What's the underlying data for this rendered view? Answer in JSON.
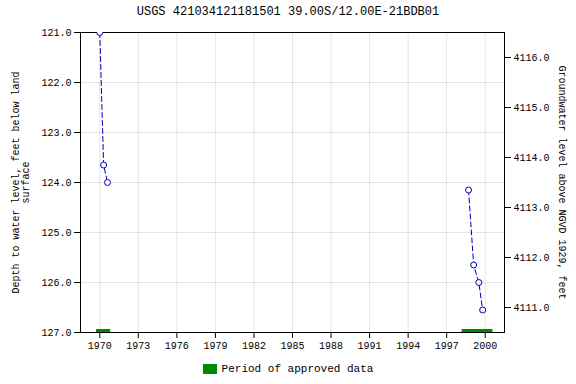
{
  "chart_data": {
    "type": "line",
    "title": "USGS 421034121181501 39.00S/12.00E-21BDB01",
    "xlim": [
      1968.5,
      2001.5
    ],
    "xticks": [
      1970,
      1973,
      1976,
      1979,
      1982,
      1985,
      1988,
      1991,
      1994,
      1997,
      2000
    ],
    "ylim": [
      127.0,
      121.0
    ],
    "yticks": [
      {
        "value": 121.0,
        "label": "121.0"
      },
      {
        "value": 122.0,
        "label": "122.0"
      },
      {
        "value": 123.0,
        "label": "123.0"
      },
      {
        "value": 124.0,
        "label": "124.0"
      },
      {
        "value": 125.0,
        "label": "125.0"
      },
      {
        "value": 126.0,
        "label": "126.0"
      },
      {
        "value": 127.0,
        "label": "127.0"
      }
    ],
    "y2lim": [
      4110.5,
      4116.5
    ],
    "y2ticks": [
      {
        "value": 4111.0,
        "label": "4111.0"
      },
      {
        "value": 4112.0,
        "label": "4112.0"
      },
      {
        "value": 4113.0,
        "label": "4113.0"
      },
      {
        "value": 4114.0,
        "label": "4114.0"
      },
      {
        "value": 4115.0,
        "label": "4115.0"
      },
      {
        "value": 4116.0,
        "label": "4116.0"
      }
    ],
    "ylabel": "Depth to water level, feet below land\nsurface",
    "y2label": "Groundwater level above NGVD 1929, feet",
    "grid": true,
    "legend": "bottom",
    "series": [
      {
        "type": "line",
        "x": [
          1970.0,
          1970.3,
          1970.6
        ],
        "values": [
          121.0,
          123.65,
          124.0
        ],
        "color": "#0000bb",
        "marker": "circle",
        "line_style": "dashed"
      },
      {
        "type": "line",
        "x": [
          1998.7,
          1999.1,
          1999.5,
          1999.8
        ],
        "values": [
          124.15,
          125.65,
          126.0,
          126.55
        ],
        "color": "#0000bb",
        "marker": "circle",
        "line_style": "dashed"
      },
      {
        "type": "bar",
        "orientation": "horizontal",
        "name": "Period of approved data",
        "color": "#008800",
        "values": [
          127.0,
          127.0
        ],
        "starts": [
          1969.75,
          1998.2
        ],
        "ends": [
          1970.85,
          2000.6
        ]
      }
    ]
  }
}
